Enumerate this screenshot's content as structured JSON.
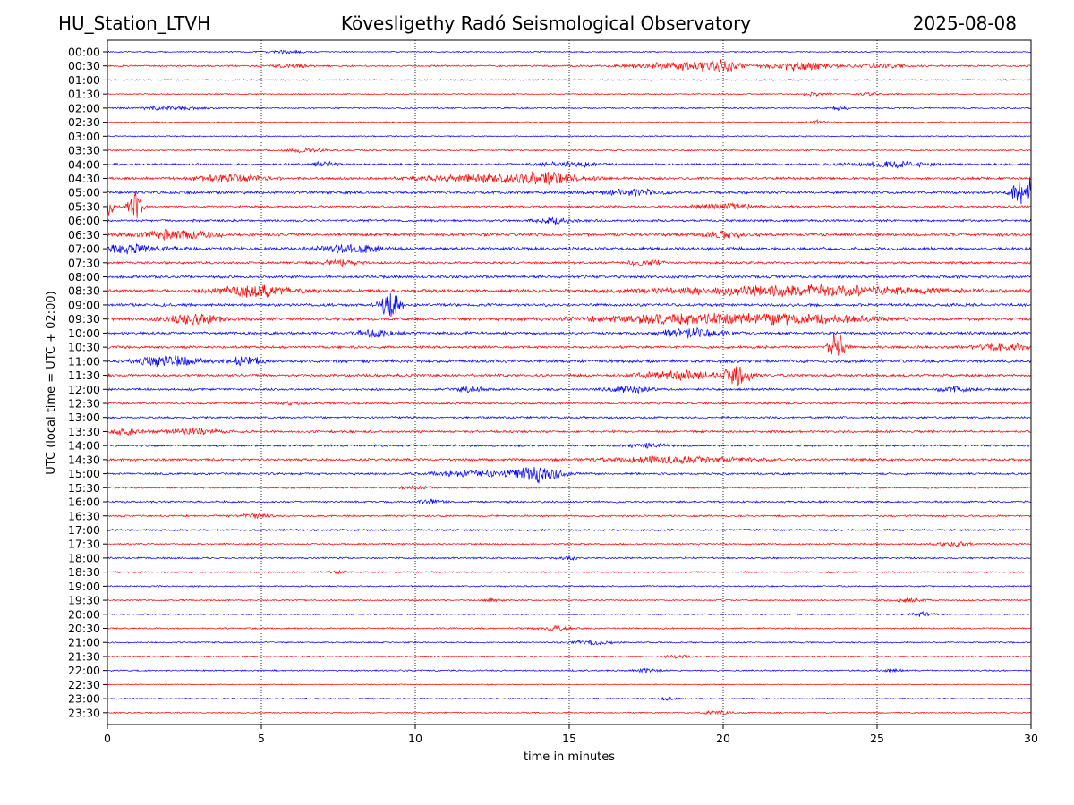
{
  "header": {
    "station": "HU_Station_LTVH",
    "title": "Kövesligethy Radó Seismological Observatory",
    "date": "2025-08-08"
  },
  "chart_data": {
    "type": "line",
    "title": "Kövesligethy Radó Seismological Observatory",
    "xlabel": "time in minutes",
    "ylabel": "UTC (local time = UTC + 02:00)",
    "xlim": [
      0,
      30
    ],
    "xticks": [
      0,
      5,
      10,
      15,
      20,
      25,
      30
    ],
    "grid": "vertical dotted lines at 5, 10, 15, 20, 25",
    "trace_colors": [
      "#0000ff",
      "#ff0000"
    ],
    "rows": [
      {
        "label": "00:00",
        "color": "#0000ff",
        "noise": 0.6,
        "events": [
          [
            5.8,
            0.6,
            0.4
          ]
        ]
      },
      {
        "label": "00:30",
        "color": "#ff0000",
        "noise": 0.8,
        "events": [
          [
            6.0,
            0.6,
            0.5
          ],
          [
            18.5,
            1.6,
            1.0
          ],
          [
            20.0,
            0.8,
            1.2
          ],
          [
            22.5,
            1.0,
            1.2
          ],
          [
            25.0,
            1.0,
            0.6
          ]
        ]
      },
      {
        "label": "01:00",
        "color": "#0000ff",
        "noise": 0.5,
        "events": []
      },
      {
        "label": "01:30",
        "color": "#ff0000",
        "noise": 0.6,
        "events": [
          [
            23.0,
            0.4,
            0.5
          ],
          [
            24.8,
            0.4,
            0.4
          ]
        ]
      },
      {
        "label": "02:00",
        "color": "#0000ff",
        "noise": 0.7,
        "events": [
          [
            2.0,
            1.0,
            0.5
          ],
          [
            23.8,
            0.3,
            0.5
          ]
        ]
      },
      {
        "label": "02:30",
        "color": "#ff0000",
        "noise": 0.6,
        "events": [
          [
            23.0,
            0.3,
            0.5
          ]
        ]
      },
      {
        "label": "03:00",
        "color": "#0000ff",
        "noise": 0.6,
        "events": []
      },
      {
        "label": "03:30",
        "color": "#ff0000",
        "noise": 0.7,
        "events": [
          [
            6.5,
            0.6,
            0.6
          ]
        ]
      },
      {
        "label": "04:00",
        "color": "#0000ff",
        "noise": 1.0,
        "events": [
          [
            7.0,
            0.5,
            0.6
          ],
          [
            15.0,
            1.0,
            0.6
          ],
          [
            25.5,
            1.2,
            0.8
          ]
        ]
      },
      {
        "label": "04:30",
        "color": "#ff0000",
        "noise": 1.2,
        "events": [
          [
            4.0,
            1.0,
            1.2
          ],
          [
            12.5,
            2.0,
            1.2
          ],
          [
            14.5,
            1.0,
            1.2
          ]
        ]
      },
      {
        "label": "05:00",
        "color": "#0000ff",
        "noise": 1.3,
        "events": [
          [
            17.0,
            1.0,
            0.8
          ],
          [
            29.8,
            0.4,
            4.5
          ]
        ]
      },
      {
        "label": "05:30",
        "color": "#ff0000",
        "noise": 1.0,
        "events": [
          [
            0.9,
            0.2,
            4.5
          ],
          [
            0.05,
            0.15,
            2.5
          ],
          [
            20.0,
            1.0,
            0.8
          ]
        ]
      },
      {
        "label": "06:00",
        "color": "#0000ff",
        "noise": 1.1,
        "events": [
          [
            14.5,
            0.6,
            0.7
          ]
        ]
      },
      {
        "label": "06:30",
        "color": "#ff0000",
        "noise": 1.4,
        "events": [
          [
            2.3,
            1.2,
            1.3
          ],
          [
            20.0,
            0.8,
            0.8
          ]
        ]
      },
      {
        "label": "07:00",
        "color": "#0000ff",
        "noise": 1.5,
        "events": [
          [
            0.8,
            1.0,
            1.2
          ],
          [
            8.0,
            1.0,
            1.0
          ]
        ]
      },
      {
        "label": "07:30",
        "color": "#ff0000",
        "noise": 1.1,
        "events": [
          [
            7.5,
            0.6,
            0.7
          ],
          [
            17.5,
            0.6,
            0.7
          ]
        ]
      },
      {
        "label": "08:00",
        "color": "#0000ff",
        "noise": 1.3,
        "events": []
      },
      {
        "label": "08:30",
        "color": "#ff0000",
        "noise": 1.6,
        "events": [
          [
            4.8,
            1.2,
            1.5
          ],
          [
            22.5,
            4.0,
            1.3
          ]
        ]
      },
      {
        "label": "09:00",
        "color": "#0000ff",
        "noise": 1.3,
        "events": [
          [
            9.2,
            0.3,
            4.5
          ]
        ]
      },
      {
        "label": "09:30",
        "color": "#ff0000",
        "noise": 1.5,
        "events": [
          [
            2.8,
            1.0,
            1.2
          ],
          [
            19.0,
            3.0,
            1.4
          ],
          [
            23.0,
            2.0,
            1.0
          ]
        ]
      },
      {
        "label": "10:00",
        "color": "#0000ff",
        "noise": 1.3,
        "events": [
          [
            8.7,
            0.6,
            1.2
          ],
          [
            19.0,
            1.0,
            1.2
          ]
        ]
      },
      {
        "label": "10:30",
        "color": "#ff0000",
        "noise": 1.2,
        "events": [
          [
            23.7,
            0.25,
            5.0
          ],
          [
            29.0,
            1.0,
            0.8
          ]
        ]
      },
      {
        "label": "11:00",
        "color": "#0000ff",
        "noise": 1.5,
        "events": [
          [
            2.0,
            1.0,
            1.3
          ],
          [
            4.5,
            0.5,
            1.4
          ]
        ]
      },
      {
        "label": "11:30",
        "color": "#ff0000",
        "noise": 1.3,
        "events": [
          [
            18.5,
            1.2,
            1.2
          ],
          [
            20.5,
            0.4,
            3.0
          ]
        ]
      },
      {
        "label": "12:00",
        "color": "#0000ff",
        "noise": 1.1,
        "events": [
          [
            11.8,
            0.5,
            0.8
          ],
          [
            17.0,
            0.7,
            0.9
          ],
          [
            27.5,
            0.5,
            0.8
          ]
        ]
      },
      {
        "label": "12:30",
        "color": "#ff0000",
        "noise": 1.0,
        "events": [
          [
            6.0,
            0.3,
            0.6
          ]
        ]
      },
      {
        "label": "13:00",
        "color": "#0000ff",
        "noise": 1.0,
        "events": []
      },
      {
        "label": "13:30",
        "color": "#ff0000",
        "noise": 1.1,
        "events": [
          [
            0.6,
            0.5,
            0.9
          ],
          [
            2.8,
            0.8,
            1.0
          ]
        ]
      },
      {
        "label": "14:00",
        "color": "#0000ff",
        "noise": 1.0,
        "events": [
          [
            17.5,
            0.6,
            0.6
          ]
        ]
      },
      {
        "label": "14:30",
        "color": "#ff0000",
        "noise": 1.2,
        "events": [
          [
            18.5,
            2.0,
            1.0
          ]
        ]
      },
      {
        "label": "15:00",
        "color": "#0000ff",
        "noise": 1.0,
        "events": [
          [
            12.0,
            1.2,
            0.9
          ],
          [
            14.0,
            0.7,
            2.5
          ]
        ]
      },
      {
        "label": "15:30",
        "color": "#ff0000",
        "noise": 0.8,
        "events": [
          [
            10.0,
            0.5,
            0.5
          ]
        ]
      },
      {
        "label": "16:00",
        "color": "#0000ff",
        "noise": 0.9,
        "events": [
          [
            10.5,
            0.4,
            0.6
          ]
        ]
      },
      {
        "label": "16:30",
        "color": "#ff0000",
        "noise": 0.9,
        "events": [
          [
            4.8,
            0.5,
            0.5
          ]
        ]
      },
      {
        "label": "17:00",
        "color": "#0000ff",
        "noise": 0.9,
        "events": []
      },
      {
        "label": "17:30",
        "color": "#ff0000",
        "noise": 0.8,
        "events": [
          [
            27.5,
            0.6,
            0.6
          ]
        ]
      },
      {
        "label": "18:00",
        "color": "#0000ff",
        "noise": 0.8,
        "events": [
          [
            15.0,
            0.3,
            0.5
          ]
        ]
      },
      {
        "label": "18:30",
        "color": "#ff0000",
        "noise": 0.7,
        "events": [
          [
            7.5,
            0.3,
            0.4
          ]
        ]
      },
      {
        "label": "19:00",
        "color": "#0000ff",
        "noise": 0.7,
        "events": []
      },
      {
        "label": "19:30",
        "color": "#ff0000",
        "noise": 0.7,
        "events": [
          [
            12.5,
            0.3,
            0.5
          ],
          [
            26.0,
            0.5,
            0.6
          ]
        ]
      },
      {
        "label": "20:00",
        "color": "#0000ff",
        "noise": 0.6,
        "events": [
          [
            26.5,
            0.4,
            0.6
          ]
        ]
      },
      {
        "label": "20:30",
        "color": "#ff0000",
        "noise": 0.7,
        "events": [
          [
            14.5,
            0.6,
            0.5
          ]
        ]
      },
      {
        "label": "21:00",
        "color": "#0000ff",
        "noise": 0.7,
        "events": [
          [
            15.8,
            0.6,
            0.7
          ]
        ]
      },
      {
        "label": "21:30",
        "color": "#ff0000",
        "noise": 0.6,
        "events": [
          [
            18.5,
            0.5,
            0.5
          ]
        ]
      },
      {
        "label": "22:00",
        "color": "#0000ff",
        "noise": 0.7,
        "events": [
          [
            17.5,
            0.4,
            0.6
          ],
          [
            25.5,
            0.3,
            0.4
          ]
        ]
      },
      {
        "label": "22:30",
        "color": "#ff0000",
        "noise": 0.5,
        "events": []
      },
      {
        "label": "23:00",
        "color": "#0000ff",
        "noise": 0.6,
        "events": [
          [
            18.2,
            0.3,
            0.5
          ]
        ]
      },
      {
        "label": "23:30",
        "color": "#ff0000",
        "noise": 0.6,
        "events": [
          [
            19.8,
            0.4,
            0.6
          ]
        ]
      }
    ]
  }
}
